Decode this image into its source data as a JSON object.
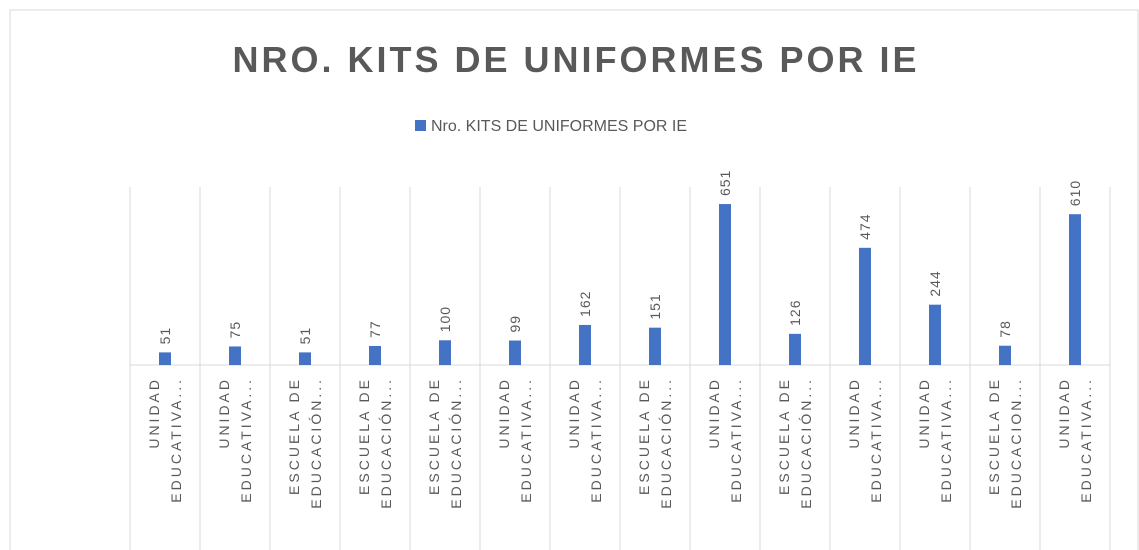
{
  "chart_data": {
    "type": "bar",
    "title": "NRO. KITS DE UNIFORMES POR IE",
    "series": [
      {
        "name": "Nro. KITS DE UNIFORMES POR IE",
        "color": "#4472c4",
        "values": [
          51,
          75,
          51,
          77,
          100,
          99,
          162,
          151,
          651,
          126,
          474,
          244,
          78,
          610
        ]
      }
    ],
    "categories": [
      "UNIDAD EDUCATIVA...",
      "UNIDAD EDUCATIVA...",
      "ESCUELA DE EDUCACIÓN...",
      "ESCUELA DE EDUCACIÓN...",
      "ESCUELA DE EDUCACIÓN...",
      "UNIDAD EDUCATIVA...",
      "UNIDAD EDUCATIVA...",
      "ESCUELA DE EDUCACIÓN...",
      "UNIDAD EDUCATIVA...",
      "ESCUELA DE EDUCACIÓN...",
      "UNIDAD EDUCATIVA...",
      "UNIDAD EDUCATIVA...",
      "ESCUELA DE EDUCACION...",
      "UNIDAD EDUCATIVA..."
    ],
    "ylim": [
      0,
      720
    ],
    "legend": "top"
  }
}
